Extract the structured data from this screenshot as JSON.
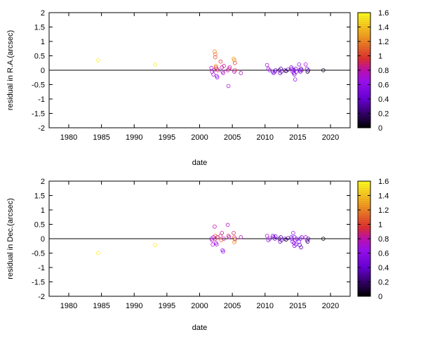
{
  "chart_data": [
    {
      "type": "scatter",
      "xlabel": "date",
      "ylabel": "residual in R.A.(arcsec)",
      "xlim": [
        1977,
        2023
      ],
      "ylim": [
        -2,
        2
      ],
      "xticks": [
        "1980",
        "1985",
        "1990",
        "1995",
        "2000",
        "2005",
        "2010",
        "2015",
        "2020"
      ],
      "yticks": [
        "-2",
        "-1.5",
        "-1",
        "-0.5",
        "0",
        "0.5",
        "1",
        "1.5",
        "2"
      ],
      "zero_line": true,
      "colorbar": {
        "min": 0,
        "max": 1.6,
        "ticks": [
          "0",
          "0.2",
          "0.4",
          "0.6",
          "0.8",
          "1",
          "1.2",
          "1.4",
          "1.6"
        ],
        "colormap": "black-purple-red-orange-yellow"
      },
      "points": [
        [
          1984.5,
          0.34,
          1.55
        ],
        [
          1993.2,
          0.2,
          1.52
        ],
        [
          2001.8,
          0.08,
          0.7
        ],
        [
          2001.9,
          -0.05,
          0.75
        ],
        [
          2002.1,
          -0.15,
          0.68
        ],
        [
          2002.2,
          0.0,
          0.72
        ],
        [
          2002.3,
          0.65,
          1.2
        ],
        [
          2002.4,
          0.55,
          1.1
        ],
        [
          2002.4,
          0.45,
          1.05
        ],
        [
          2002.5,
          0.15,
          1.3
        ],
        [
          2002.5,
          0.1,
          1.0
        ],
        [
          2002.6,
          0.05,
          0.9
        ],
        [
          2002.6,
          -0.2,
          0.65
        ],
        [
          2002.7,
          -0.25,
          0.6
        ],
        [
          2002.8,
          0.0,
          0.85
        ],
        [
          2003.2,
          0.3,
          0.95
        ],
        [
          2003.4,
          0.1,
          0.8
        ],
        [
          2003.5,
          -0.05,
          0.7
        ],
        [
          2003.6,
          -0.1,
          0.75
        ],
        [
          2003.7,
          0.15,
          0.85
        ],
        [
          2004.3,
          0.0,
          0.8
        ],
        [
          2004.4,
          -0.55,
          0.7
        ],
        [
          2004.5,
          0.05,
          0.9
        ],
        [
          2004.6,
          0.1,
          0.8
        ],
        [
          2005.2,
          0.4,
          1.3
        ],
        [
          2005.3,
          0.35,
          1.2
        ],
        [
          2005.4,
          0.25,
          1.0
        ],
        [
          2005.3,
          -0.05,
          0.75
        ],
        [
          2005.4,
          0.0,
          0.9
        ],
        [
          2006.3,
          -0.1,
          0.75
        ],
        [
          2010.3,
          0.18,
          0.72
        ],
        [
          2010.5,
          0.05,
          0.6
        ],
        [
          2010.7,
          0.0,
          0.65
        ],
        [
          2011.2,
          -0.05,
          0.45
        ],
        [
          2011.3,
          -0.1,
          0.5
        ],
        [
          2011.5,
          -0.05,
          0.55
        ],
        [
          2011.6,
          0.0,
          0.4
        ],
        [
          2012.2,
          0.0,
          0.2
        ],
        [
          2012.3,
          -0.1,
          0.4
        ],
        [
          2012.4,
          0.05,
          0.3
        ],
        [
          2012.5,
          -0.05,
          0.35
        ],
        [
          2013.0,
          0.0,
          0.5
        ],
        [
          2013.2,
          -0.03,
          0.1
        ],
        [
          2013.5,
          0.02,
          0.3
        ],
        [
          2014.0,
          0.1,
          0.5
        ],
        [
          2014.1,
          0.05,
          0.45
        ],
        [
          2014.2,
          -0.05,
          0.55
        ],
        [
          2014.3,
          0.0,
          0.6
        ],
        [
          2014.4,
          -0.1,
          0.55
        ],
        [
          2014.5,
          -0.15,
          0.5
        ],
        [
          2014.5,
          0.0,
          0.45
        ],
        [
          2014.6,
          -0.32,
          0.6
        ],
        [
          2014.7,
          0.05,
          0.5
        ],
        [
          2014.8,
          -0.05,
          0.55
        ],
        [
          2015.2,
          0.2,
          0.6
        ],
        [
          2015.3,
          0.0,
          0.4
        ],
        [
          2015.4,
          -0.05,
          0.45
        ],
        [
          2015.5,
          0.05,
          0.3
        ],
        [
          2015.6,
          0.0,
          0.5
        ],
        [
          2016.2,
          0.2,
          0.7
        ],
        [
          2016.4,
          0.05,
          0.5
        ],
        [
          2016.5,
          -0.05,
          0.1
        ],
        [
          2016.6,
          0.0,
          0.3
        ],
        [
          2018.9,
          0.0,
          0.05
        ]
      ]
    },
    {
      "type": "scatter",
      "xlabel": "date",
      "ylabel": "residual in Dec.(arcsec)",
      "xlim": [
        1977,
        2023
      ],
      "ylim": [
        -2,
        2
      ],
      "xticks": [
        "1980",
        "1985",
        "1990",
        "1995",
        "2000",
        "2005",
        "2010",
        "2015",
        "2020"
      ],
      "yticks": [
        "-2",
        "-1.5",
        "-1",
        "-0.5",
        "0",
        "0.5",
        "1",
        "1.5",
        "2"
      ],
      "zero_line": true,
      "colorbar": {
        "min": 0,
        "max": 1.6,
        "ticks": [
          "0",
          "0.2",
          "0.4",
          "0.6",
          "0.8",
          "1",
          "1.2",
          "1.4",
          "1.6"
        ],
        "colormap": "black-purple-red-orange-yellow"
      },
      "points": [
        [
          1984.5,
          -0.5,
          1.55
        ],
        [
          1993.2,
          -0.22,
          1.52
        ],
        [
          2001.8,
          0.0,
          0.7
        ],
        [
          2001.9,
          -0.05,
          0.75
        ],
        [
          2002.0,
          -0.2,
          0.68
        ],
        [
          2002.1,
          0.05,
          0.72
        ],
        [
          2002.3,
          0.42,
          0.8
        ],
        [
          2002.4,
          0.1,
          1.1
        ],
        [
          2002.4,
          0.0,
          0.9
        ],
        [
          2002.5,
          -0.15,
          0.65
        ],
        [
          2002.6,
          -0.2,
          0.7
        ],
        [
          2002.7,
          0.05,
          0.85
        ],
        [
          2003.2,
          0.1,
          0.9
        ],
        [
          2003.3,
          -0.05,
          1.1
        ],
        [
          2003.4,
          0.2,
          0.85
        ],
        [
          2003.5,
          -0.4,
          0.6
        ],
        [
          2003.6,
          -0.45,
          0.65
        ],
        [
          2003.7,
          0.0,
          0.8
        ],
        [
          2004.3,
          0.48,
          0.75
        ],
        [
          2004.4,
          0.1,
          0.85
        ],
        [
          2004.5,
          0.05,
          0.8
        ],
        [
          2005.2,
          0.2,
          0.9
        ],
        [
          2005.3,
          0.05,
          1.1
        ],
        [
          2005.4,
          -0.05,
          1.3
        ],
        [
          2005.3,
          -0.12,
          1.2
        ],
        [
          2005.4,
          0.0,
          0.8
        ],
        [
          2006.3,
          0.05,
          0.75
        ],
        [
          2010.3,
          0.1,
          0.7
        ],
        [
          2010.5,
          -0.05,
          0.6
        ],
        [
          2010.7,
          0.0,
          0.65
        ],
        [
          2011.2,
          0.1,
          0.45
        ],
        [
          2011.3,
          0.05,
          0.5
        ],
        [
          2011.5,
          0.0,
          0.55
        ],
        [
          2011.6,
          0.08,
          0.4
        ],
        [
          2012.2,
          0.0,
          0.2
        ],
        [
          2012.3,
          -0.1,
          0.4
        ],
        [
          2012.4,
          0.05,
          0.3
        ],
        [
          2012.5,
          -0.05,
          0.35
        ],
        [
          2013.0,
          0.0,
          0.5
        ],
        [
          2013.2,
          -0.03,
          0.1
        ],
        [
          2013.5,
          0.02,
          0.3
        ],
        [
          2014.0,
          0.05,
          0.5
        ],
        [
          2014.1,
          0.0,
          0.45
        ],
        [
          2014.2,
          -0.1,
          0.55
        ],
        [
          2014.3,
          0.2,
          0.6
        ],
        [
          2014.4,
          -0.15,
          0.55
        ],
        [
          2014.5,
          -0.25,
          0.5
        ],
        [
          2014.5,
          0.05,
          0.45
        ],
        [
          2014.6,
          -0.05,
          0.6
        ],
        [
          2014.7,
          -0.2,
          0.5
        ],
        [
          2014.8,
          0.0,
          0.55
        ],
        [
          2015.2,
          -0.1,
          0.6
        ],
        [
          2015.3,
          -0.22,
          0.4
        ],
        [
          2015.4,
          0.0,
          0.45
        ],
        [
          2015.5,
          -0.3,
          0.3
        ],
        [
          2015.6,
          0.05,
          0.5
        ],
        [
          2016.2,
          0.05,
          0.7
        ],
        [
          2016.4,
          -0.05,
          0.5
        ],
        [
          2016.5,
          -0.1,
          0.1
        ],
        [
          2016.6,
          0.0,
          0.3
        ],
        [
          2018.9,
          0.0,
          0.05
        ]
      ]
    }
  ]
}
